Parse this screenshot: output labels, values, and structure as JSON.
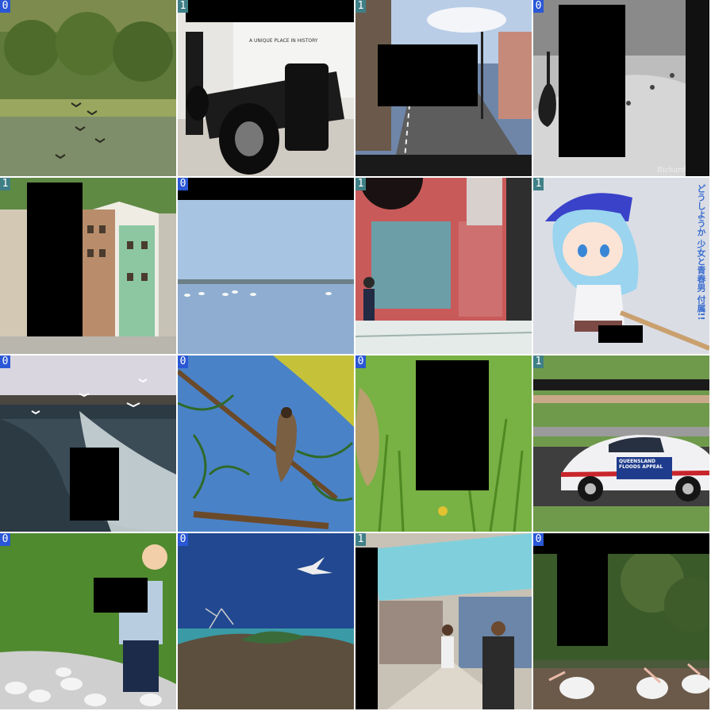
{
  "tiles": [
    {
      "label": "0",
      "scene": "lake-with-birds-icon"
    },
    {
      "label": "1",
      "scene": "race-car-exhibit-icon",
      "text": "A UNIQUE PLACE IN HISTORY"
    },
    {
      "label": "1",
      "scene": "city-street-icon"
    },
    {
      "label": "0",
      "scene": "peacock-bw-icon",
      "caption": "Richard"
    },
    {
      "label": "1",
      "scene": "waterfront-houses-icon"
    },
    {
      "label": "0",
      "scene": "flamingos-water-icon"
    },
    {
      "label": "1",
      "scene": "storefront-night-icon"
    },
    {
      "label": "1",
      "scene": "anime-figure-icon",
      "text": "どうしようか 少女と青春男 付属!!"
    },
    {
      "label": "0",
      "scene": "seagulls-wake-icon"
    },
    {
      "label": "0",
      "scene": "bird-on-branch-icon"
    },
    {
      "label": "0",
      "scene": "waxwing-grass-icon"
    },
    {
      "label": "1",
      "scene": "touring-car-icon",
      "text": "QUEENSLAND FLOODS APPEAL"
    },
    {
      "label": "0",
      "scene": "boy-with-doves-icon"
    },
    {
      "label": "0",
      "scene": "tern-island-icon"
    },
    {
      "label": "1",
      "scene": "market-stalls-icon"
    },
    {
      "label": "0",
      "scene": "pelicans-icon"
    }
  ]
}
